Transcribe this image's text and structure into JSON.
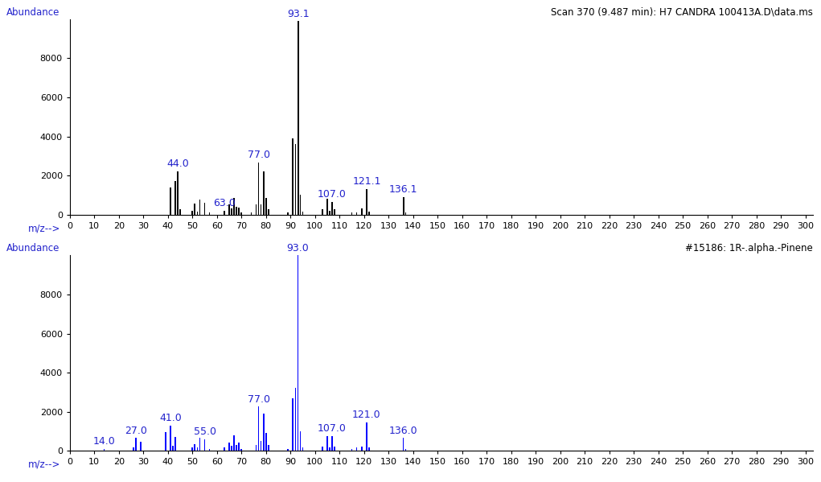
{
  "chart_data": [
    {
      "type": "bar",
      "title": "Scan 370 (9.487 min): H7 CANDRA 100413A.D\\data.ms",
      "y_label": "Abundance",
      "x_label": "m/z-->",
      "color": "#000000",
      "x": [
        41,
        43,
        44.0,
        45,
        50,
        51,
        52,
        53,
        55,
        57,
        63.0,
        65,
        66,
        67,
        68,
        69,
        70,
        74,
        76,
        77.0,
        78,
        79,
        80,
        81,
        89,
        91,
        92,
        93.1,
        94,
        95,
        103,
        105,
        106,
        107.0,
        108,
        115,
        117,
        119,
        121.1,
        122,
        136.1,
        137
      ],
      "values": [
        1400,
        1700,
        2200,
        250,
        200,
        550,
        150,
        750,
        600,
        100,
        200,
        500,
        300,
        850,
        400,
        350,
        100,
        100,
        500,
        2650,
        500,
        2200,
        850,
        250,
        100,
        3900,
        3600,
        9900,
        1000,
        150,
        250,
        800,
        200,
        650,
        250,
        100,
        100,
        300,
        1300,
        150,
        900,
        100
      ],
      "annotations": [
        {
          "x": 44.0,
          "label": "44.0"
        },
        {
          "x": 63.0,
          "label": "63.0"
        },
        {
          "x": 77.0,
          "label": "77.0"
        },
        {
          "x": 93.1,
          "label": "93.1"
        },
        {
          "x": 107.0,
          "label": "107.0"
        },
        {
          "x": 121.1,
          "label": "121.1"
        },
        {
          "x": 136.1,
          "label": "136.1"
        }
      ],
      "xlim": [
        0,
        303
      ],
      "ylim": [
        0,
        10000
      ],
      "xticks": [
        0,
        10,
        20,
        30,
        40,
        50,
        60,
        70,
        80,
        90,
        100,
        110,
        120,
        130,
        140,
        150,
        160,
        170,
        180,
        190,
        200,
        210,
        220,
        230,
        240,
        250,
        260,
        270,
        280,
        290,
        300
      ],
      "yticks": [
        0,
        2000,
        4000,
        6000,
        8000
      ]
    },
    {
      "type": "bar",
      "title": "#15186: 1R-.alpha.-Pinene",
      "y_label": "Abundance",
      "x_label": "m/z-->",
      "color": "#0000ff",
      "x": [
        14.0,
        26,
        27.0,
        29,
        39,
        41.0,
        42,
        43,
        50,
        51,
        52,
        53,
        55.0,
        57,
        63,
        65,
        66,
        67,
        68,
        69,
        70,
        76,
        77.0,
        78,
        79,
        80,
        81,
        89,
        91,
        92,
        93.0,
        94,
        95,
        103,
        105,
        106,
        107.0,
        108,
        115,
        117,
        119,
        121.0,
        122,
        136.0,
        137
      ],
      "values": [
        100,
        150,
        650,
        450,
        950,
        1300,
        250,
        700,
        150,
        350,
        150,
        650,
        600,
        100,
        150,
        400,
        250,
        800,
        300,
        400,
        100,
        300,
        2250,
        500,
        1900,
        900,
        300,
        100,
        2700,
        3200,
        9999,
        1000,
        150,
        200,
        750,
        150,
        750,
        200,
        100,
        150,
        200,
        1450,
        150,
        650,
        100
      ],
      "annotations": [
        {
          "x": 14.0,
          "label": "14.0"
        },
        {
          "x": 27.0,
          "label": "27.0"
        },
        {
          "x": 41.0,
          "label": "41.0"
        },
        {
          "x": 55.0,
          "label": "55.0"
        },
        {
          "x": 77.0,
          "label": "77.0"
        },
        {
          "x": 93.0,
          "label": "93.0"
        },
        {
          "x": 107.0,
          "label": "107.0"
        },
        {
          "x": 121.0,
          "label": "121.0"
        },
        {
          "x": 136.0,
          "label": "136.0"
        }
      ],
      "xlim": [
        0,
        303
      ],
      "ylim": [
        0,
        10000
      ],
      "xticks": [
        0,
        10,
        20,
        30,
        40,
        50,
        60,
        70,
        80,
        90,
        100,
        110,
        120,
        130,
        140,
        150,
        160,
        170,
        180,
        190,
        200,
        210,
        220,
        230,
        240,
        250,
        260,
        270,
        280,
        290,
        300
      ],
      "yticks": [
        0,
        2000,
        4000,
        6000,
        8000
      ]
    }
  ]
}
